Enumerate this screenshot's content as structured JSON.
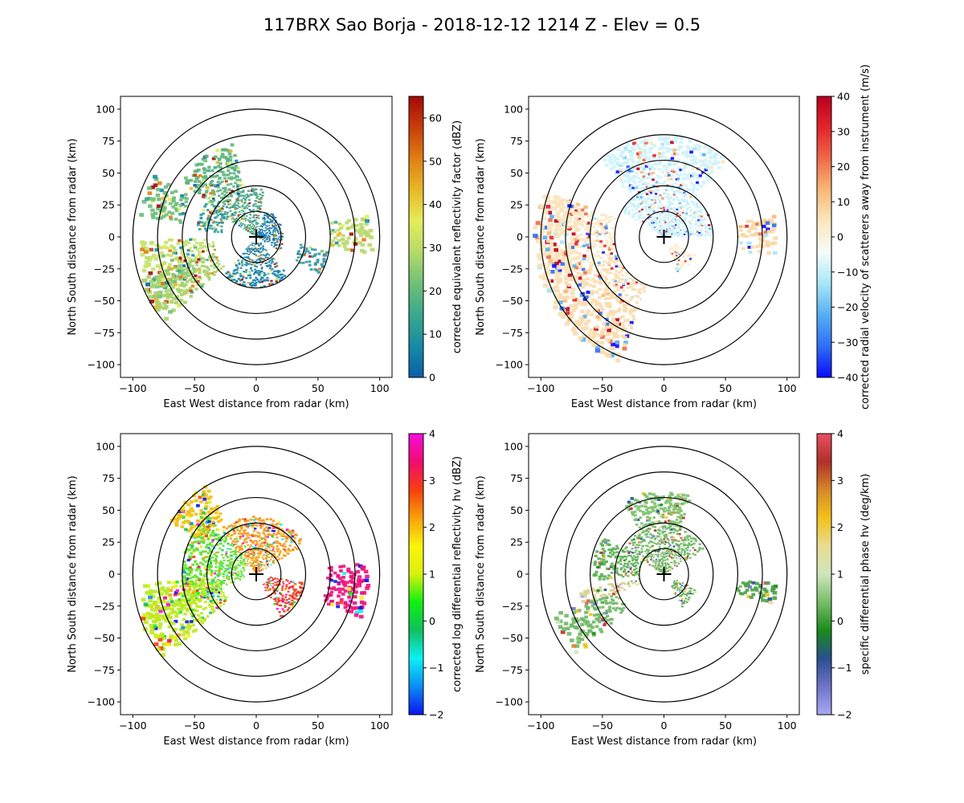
{
  "figure": {
    "title": "117BRX Sao Borja - 2018-12-12 1214 Z -  Elev = 0.5"
  },
  "chart_data": [
    {
      "type": "heatmap",
      "panel": "top-left",
      "xlabel": "East West distance from radar (km)",
      "ylabel": "North South distance from radar (km)",
      "xlim": [
        -110,
        110
      ],
      "ylim": [
        -110,
        110
      ],
      "xticks": [
        -100,
        -50,
        0,
        50,
        100
      ],
      "yticks": [
        -100,
        -75,
        -50,
        -25,
        0,
        25,
        50,
        75,
        100
      ],
      "range_rings_km": [
        20,
        40,
        60,
        80,
        100
      ],
      "colorbar": {
        "label": "corrected equivalent reflectivity factor (dBZ)",
        "vmin": 0,
        "vmax": 65,
        "ticks": [
          0,
          10,
          20,
          30,
          40,
          50,
          60
        ],
        "colors": [
          "#0a5fa8",
          "#178aa6",
          "#39a98b",
          "#6fbf78",
          "#b4da6a",
          "#e5ec5a",
          "#e8b828",
          "#df7f14",
          "#c93e0a",
          "#a30808"
        ]
      },
      "echoes": [
        {
          "az": [
            20,
            120
          ],
          "r": [
            0,
            22
          ],
          "color": "#1377ad"
        },
        {
          "az": [
            -60,
            10
          ],
          "r": [
            0,
            38
          ],
          "color": "#4aa98e"
        },
        {
          "az": [
            -85,
            -55
          ],
          "r": [
            28,
            48
          ],
          "color": "#2f9aa0"
        },
        {
          "az": [
            -110,
            -92
          ],
          "r": [
            35,
            95
          ],
          "color": "#c5e26a"
        },
        {
          "az": [
            -120,
            -110
          ],
          "r": [
            55,
            90
          ],
          "color": "#7cc47a"
        },
        {
          "az": [
            -80,
            -60
          ],
          "r": [
            60,
            95
          ],
          "color": "#6dbd78"
        },
        {
          "az": [
            -55,
            -15
          ],
          "r": [
            35,
            75
          ],
          "color": "#5fb47e"
        },
        {
          "az": [
            80,
            98
          ],
          "r": [
            60,
            95
          ],
          "color": "#b8d96b"
        },
        {
          "az": [
            100,
            120
          ],
          "r": [
            35,
            60
          ],
          "color": "#3798a3"
        },
        {
          "az": [
            140,
            220
          ],
          "r": [
            5,
            40
          ],
          "color": "#1b84aa"
        },
        {
          "az": [
            228,
            250
          ],
          "r": [
            35,
            100
          ],
          "color": "#a9d36a"
        }
      ]
    },
    {
      "type": "heatmap",
      "panel": "top-right",
      "xlabel": "East West distance from radar (km)",
      "ylabel": "North South distance from radar (km)",
      "xlim": [
        -110,
        110
      ],
      "ylim": [
        -110,
        110
      ],
      "xticks": [
        -100,
        -50,
        0,
        50,
        100
      ],
      "yticks": [
        -100,
        -75,
        -50,
        -25,
        0,
        25,
        50,
        75,
        100
      ],
      "range_rings_km": [
        20,
        40,
        60,
        80,
        100
      ],
      "colorbar": {
        "label": "corrected radial velocity of scatterers away from instrument (m/s)",
        "vmin": -40,
        "vmax": 40,
        "ticks": [
          -40,
          -30,
          -20,
          -10,
          0,
          10,
          20,
          30,
          40
        ],
        "colors": [
          "#0a0afa",
          "#2f6ff5",
          "#55aef2",
          "#a8e6f7",
          "#f4fdfb",
          "#fbe7bd",
          "#f8b878",
          "#ee6a4a",
          "#e2242c",
          "#b8001e"
        ]
      },
      "echoes": [
        {
          "az": [
            -60,
            90
          ],
          "r": [
            0,
            40
          ],
          "color": "#c4f1f9"
        },
        {
          "az": [
            -40,
            40
          ],
          "r": [
            40,
            78
          ],
          "color": "#cdf3fa"
        },
        {
          "az": [
            -110,
            -70
          ],
          "r": [
            40,
            95
          ],
          "color": "#fae9c6"
        },
        {
          "az": [
            80,
            100
          ],
          "r": [
            60,
            92
          ],
          "color": "#fbd6a4"
        },
        {
          "az": [
            200,
            250
          ],
          "r": [
            40,
            105
          ],
          "color": "#f9dcae"
        },
        {
          "az": [
            250,
            290
          ],
          "r": [
            70,
            105
          ],
          "color": "#fbe3bb"
        },
        {
          "az": [
            120,
            160
          ],
          "r": [
            10,
            30
          ],
          "color": "#fbe6c0"
        }
      ]
    },
    {
      "type": "heatmap",
      "panel": "bottom-left",
      "xlabel": "East West distance from radar (km)",
      "ylabel": "North South distance from radar (km)",
      "xlim": [
        -110,
        110
      ],
      "ylim": [
        -110,
        110
      ],
      "xticks": [
        -100,
        -50,
        0,
        50,
        100
      ],
      "yticks": [
        -100,
        -75,
        -50,
        -25,
        0,
        25,
        50,
        75,
        100
      ],
      "range_rings_km": [
        20,
        40,
        60,
        80,
        100
      ],
      "colorbar": {
        "label": "corrected log differential reflectivity hv (dBZ)",
        "vmin": -2,
        "vmax": 4,
        "ticks": [
          -2,
          -1,
          0,
          1,
          2,
          3,
          4
        ],
        "colors": [
          "#0a14f0",
          "#0b8cf5",
          "#0cf0f4",
          "#10c060",
          "#10f010",
          "#d8f010",
          "#fcf40c",
          "#f8a00c",
          "#f5400c",
          "#f00c70",
          "#f80ce0"
        ]
      },
      "echoes": [
        {
          "az": [
            -40,
            60
          ],
          "r": [
            0,
            45
          ],
          "color": "#f29a1a"
        },
        {
          "az": [
            -110,
            -40
          ],
          "r": [
            10,
            60
          ],
          "color": "#5fe02a"
        },
        {
          "az": [
            -115,
            -95
          ],
          "r": [
            30,
            95
          ],
          "color": "#b6ea1e"
        },
        {
          "az": [
            -60,
            -30
          ],
          "r": [
            50,
            80
          ],
          "color": "#f0c010"
        },
        {
          "az": [
            85,
            112
          ],
          "r": [
            58,
            92
          ],
          "color": "#f0107a"
        },
        {
          "az": [
            100,
            150
          ],
          "r": [
            10,
            40
          ],
          "color": "#ee3a1f"
        },
        {
          "az": [
            228,
            252
          ],
          "r": [
            30,
            100
          ],
          "color": "#c0e820"
        }
      ]
    },
    {
      "type": "heatmap",
      "panel": "bottom-right",
      "xlabel": "East West distance from radar (km)",
      "ylabel": "North South distance from radar (km)",
      "xlim": [
        -110,
        110
      ],
      "ylim": [
        -110,
        110
      ],
      "xticks": [
        -100,
        -50,
        0,
        50,
        100
      ],
      "yticks": [
        -100,
        -75,
        -50,
        -25,
        0,
        25,
        50,
        75,
        100
      ],
      "range_rings_km": [
        20,
        40,
        60,
        80,
        100
      ],
      "colorbar": {
        "label": "specific differential phase hv (deg/km)",
        "vmin": -2,
        "vmax": 4,
        "ticks": [
          -2,
          -1,
          0,
          1,
          2,
          3,
          4
        ],
        "colors": [
          "#a8a8f4",
          "#6f74c8",
          "#2a4f8e",
          "#1a8a1a",
          "#78bd6a",
          "#cfe6bb",
          "#e8dc92",
          "#f2c21a",
          "#d4882a",
          "#b0302a",
          "#e85060"
        ]
      },
      "echoes": [
        {
          "az": [
            -60,
            60
          ],
          "r": [
            0,
            38
          ],
          "color": "#6cb860"
        },
        {
          "az": [
            -30,
            20
          ],
          "r": [
            38,
            65
          ],
          "color": "#7bc06c"
        },
        {
          "az": [
            -95,
            -60
          ],
          "r": [
            20,
            58
          ],
          "color": "#5aae52"
        },
        {
          "az": [
            -112,
            -100
          ],
          "r": [
            20,
            70
          ],
          "color": "#d8d28a"
        },
        {
          "az": [
            95,
            105
          ],
          "r": [
            60,
            92
          ],
          "color": "#4aa048"
        },
        {
          "az": [
            115,
            150
          ],
          "r": [
            10,
            30
          ],
          "color": "#5fae56"
        },
        {
          "az": [
            228,
            250
          ],
          "r": [
            40,
            95
          ],
          "color": "#6fb864"
        }
      ]
    }
  ]
}
